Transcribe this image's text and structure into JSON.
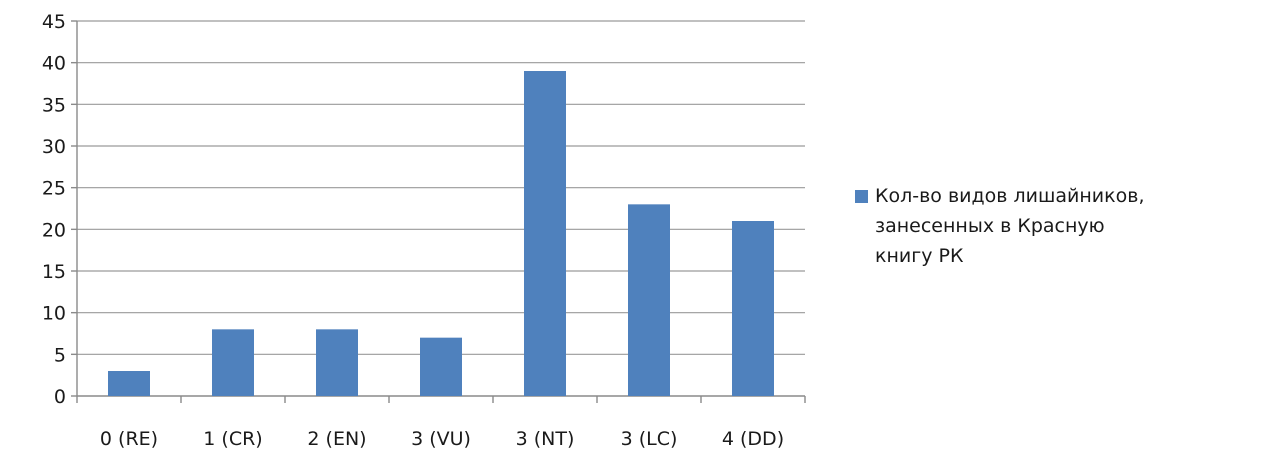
{
  "colors": {
    "bar": "#4f81bd"
  },
  "chart_data": {
    "type": "bar",
    "categories": [
      "0 (RE)",
      "1 (CR)",
      "2 (EN)",
      "3 (VU)",
      "3 (NT)",
      "3 (LC)",
      "4 (DD)"
    ],
    "series": [
      {
        "name": "Кол-во видов лишайников,\nзанесенных в Красную\nкнигу РК",
        "values": [
          3,
          8,
          8,
          7,
          39,
          23,
          21
        ]
      }
    ],
    "title": "",
    "xlabel": "",
    "ylabel": "",
    "ylim": [
      0,
      45
    ],
    "yticks": [
      0,
      5,
      10,
      15,
      20,
      25,
      30,
      35,
      40,
      45
    ],
    "grid": true,
    "legend_position": "right"
  }
}
